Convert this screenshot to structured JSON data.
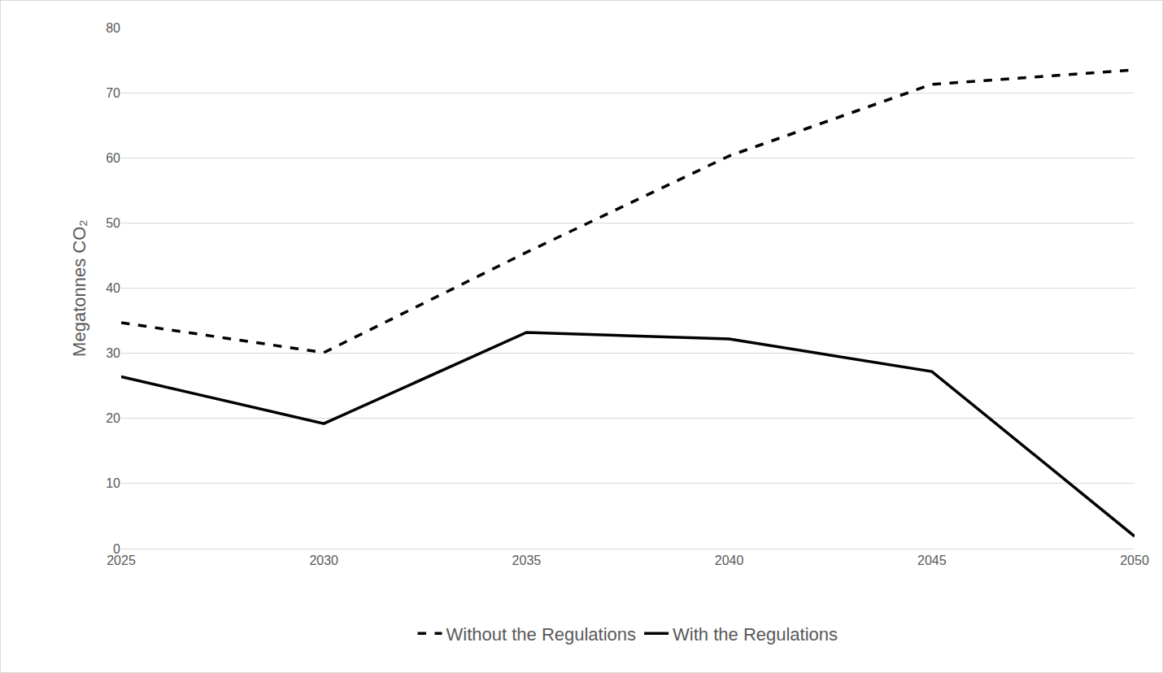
{
  "chart_data": {
    "type": "line",
    "y_label": "Megatonnes CO₂",
    "categories": [
      "2025",
      "2030",
      "2035",
      "2040",
      "2045",
      "2050"
    ],
    "series": [
      {
        "name": "Without the Regulations",
        "color": "#000000",
        "line_style": "dashed",
        "values": [
          34.7,
          30.1,
          45.5,
          60.3,
          71.3,
          73.5
        ]
      },
      {
        "name": "With the Regulations",
        "color": "#000000",
        "line_style": "solid",
        "values": [
          26.4,
          19.2,
          33.2,
          32.2,
          27.2,
          1.9
        ]
      }
    ],
    "ylim": [
      0,
      80
    ],
    "yticks": [
      0,
      10,
      20,
      30,
      40,
      50,
      60,
      70,
      80
    ],
    "grid": true,
    "legend": "bottom"
  }
}
